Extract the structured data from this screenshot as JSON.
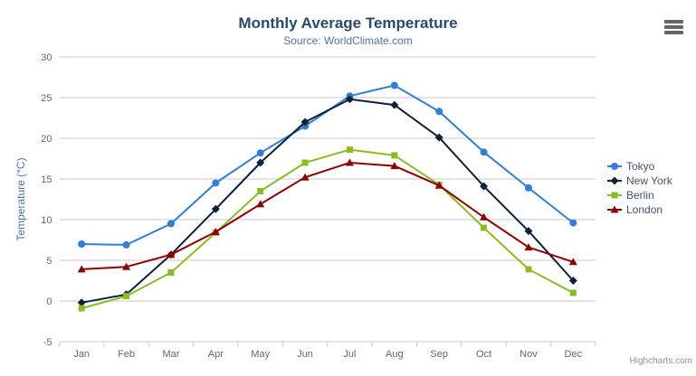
{
  "chart_data": {
    "type": "line",
    "title": "Monthly Average Temperature",
    "subtitle": "Source: WorldClimate.com",
    "categories": [
      "Jan",
      "Feb",
      "Mar",
      "Apr",
      "May",
      "Jun",
      "Jul",
      "Aug",
      "Sep",
      "Oct",
      "Nov",
      "Dec"
    ],
    "xlabel": "",
    "ylabel": "Temperature (°C)",
    "ylim": [
      -5,
      30
    ],
    "ytick_interval": 5,
    "grid": true,
    "legend_position": "right",
    "series": [
      {
        "name": "Tokyo",
        "color": "#2f7ed8",
        "marker": "circle",
        "values": [
          7.0,
          6.9,
          9.5,
          14.5,
          18.2,
          21.5,
          25.2,
          26.5,
          23.3,
          18.3,
          13.9,
          9.6
        ]
      },
      {
        "name": "New York",
        "color": "#0d233a",
        "marker": "diamond",
        "values": [
          -0.2,
          0.8,
          5.7,
          11.3,
          17.0,
          22.0,
          24.8,
          24.1,
          20.1,
          14.1,
          8.6,
          2.5
        ]
      },
      {
        "name": "Berlin",
        "color": "#8bbc21",
        "marker": "square",
        "values": [
          -0.9,
          0.6,
          3.5,
          8.4,
          13.5,
          17.0,
          18.6,
          17.9,
          14.3,
          9.0,
          3.9,
          1.0
        ]
      },
      {
        "name": "London",
        "color": "#910000",
        "marker": "triangle",
        "values": [
          3.9,
          4.2,
          5.7,
          8.5,
          11.9,
          15.2,
          17.0,
          16.6,
          14.2,
          10.3,
          6.6,
          4.8
        ]
      }
    ],
    "credits": "Highcharts.com"
  },
  "icons": {
    "menu": "hamburger-menu-icon"
  },
  "colors": {
    "title": "#274b6d",
    "subtitle": "#4d759e",
    "axis_title": "#4d759e",
    "tick_label": "#666666",
    "gridline": "#c8c8c8",
    "axis_line": "#c0d0e0",
    "legend_text": "#3e576f",
    "credits_text": "#909090",
    "menu_icon": "#666666"
  }
}
